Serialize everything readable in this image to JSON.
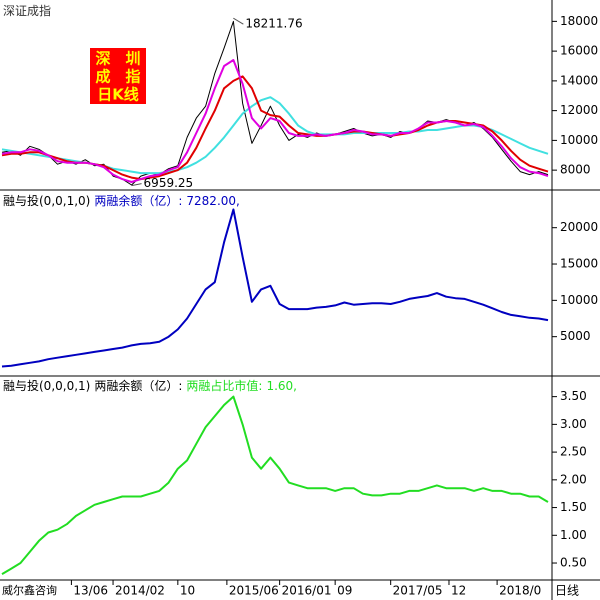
{
  "chart_data": [
    {
      "type": "line",
      "title": "深证成指",
      "badge": [
        "深　圳",
        "成　指",
        "日K线"
      ],
      "xlim": [
        0,
        59
      ],
      "ylim": [
        6800,
        19100
      ],
      "yticks": [
        8000,
        10000,
        12000,
        14000,
        16000,
        18000
      ],
      "annotations": [
        {
          "x": 25,
          "y": 18211.76
        },
        {
          "x": 14,
          "y": 6959.25
        }
      ],
      "series": [
        {
          "color": "#000000",
          "values": [
            9200,
            9300,
            9000,
            9600,
            9400,
            9000,
            8400,
            8600,
            8400,
            8700,
            8300,
            8400,
            7600,
            7400,
            7000,
            7600,
            7800,
            7700,
            8100,
            8300,
            10200,
            11500,
            12300,
            14500,
            16200,
            18000,
            12500,
            9800,
            11000,
            12300,
            11000,
            10000,
            10400,
            10200,
            10500,
            10300,
            10400,
            10600,
            10800,
            10500,
            10300,
            10400,
            10200,
            10600,
            10500,
            10800,
            11300,
            11200,
            11400,
            11200,
            11000,
            11200,
            10800,
            10200,
            9400,
            8600,
            7900,
            7700,
            7900,
            7700
          ]
        },
        {
          "color": "#40e0e0",
          "values": [
            9400,
            9300,
            9200,
            9100,
            9000,
            8900,
            8800,
            8700,
            8600,
            8500,
            8400,
            8300,
            8100,
            8000,
            7900,
            7800,
            7800,
            7800,
            7900,
            8000,
            8200,
            8500,
            8900,
            9500,
            10200,
            11000,
            11800,
            12300,
            12700,
            12900,
            12500,
            11800,
            11000,
            10600,
            10400,
            10400,
            10400,
            10400,
            10500,
            10500,
            10500,
            10500,
            10500,
            10500,
            10600,
            10600,
            10700,
            10700,
            10800,
            10900,
            11000,
            11000,
            10900,
            10700,
            10400,
            10100,
            9800,
            9500,
            9300,
            9100
          ]
        },
        {
          "color": "#e00000",
          "values": [
            9000,
            9100,
            9100,
            9200,
            9200,
            9000,
            8800,
            8600,
            8500,
            8500,
            8400,
            8300,
            8000,
            7700,
            7500,
            7400,
            7500,
            7600,
            7800,
            8000,
            8500,
            9500,
            10800,
            12000,
            13500,
            14000,
            14300,
            13500,
            12000,
            11700,
            11600,
            11000,
            10500,
            10400,
            10300,
            10300,
            10400,
            10500,
            10600,
            10600,
            10500,
            10400,
            10300,
            10400,
            10500,
            10700,
            11000,
            11200,
            11300,
            11300,
            11200,
            11100,
            11000,
            10600,
            10000,
            9300,
            8700,
            8300,
            8100,
            7900
          ]
        },
        {
          "color": "#e000e0",
          "values": [
            9100,
            9200,
            9200,
            9400,
            9300,
            9000,
            8600,
            8500,
            8500,
            8500,
            8400,
            8200,
            7700,
            7400,
            7200,
            7400,
            7600,
            7700,
            8000,
            8200,
            9200,
            10500,
            11800,
            13500,
            15000,
            15400,
            13800,
            11500,
            10800,
            11500,
            11300,
            10500,
            10300,
            10300,
            10400,
            10300,
            10400,
            10500,
            10700,
            10600,
            10400,
            10400,
            10300,
            10500,
            10500,
            10800,
            11200,
            11200,
            11300,
            11200,
            11000,
            11100,
            10900,
            10300,
            9600,
            8800,
            8200,
            7900,
            7800,
            7600
          ]
        }
      ]
    },
    {
      "type": "line",
      "indicator": "融与投(0,0,1,0)",
      "xlim": [
        0,
        59
      ],
      "ylim": [
        0,
        24500
      ],
      "yticks": [
        5000,
        10000,
        15000,
        20000
      ],
      "series": [
        {
          "name": "两融余额（亿）:",
          "color": "#0000c0",
          "values": [
            900,
            1000,
            1200,
            1400,
            1600,
            1900,
            2100,
            2300,
            2500,
            2700,
            2900,
            3100,
            3300,
            3500,
            3800,
            4000,
            4100,
            4300,
            5000,
            6000,
            7500,
            9500,
            11500,
            12500,
            18000,
            22500,
            16000,
            9800,
            11500,
            12000,
            9500,
            8800,
            8800,
            8800,
            9000,
            9100,
            9300,
            9700,
            9400,
            9500,
            9600,
            9600,
            9500,
            9800,
            10200,
            10400,
            10600,
            11000,
            10500,
            10300,
            10200,
            9800,
            9400,
            8900,
            8400,
            8000,
            7800,
            7600,
            7500,
            7282
          ],
          "value_labels": [
            null,
            null,
            null,
            null,
            null,
            null,
            null,
            null,
            null,
            null,
            null,
            null,
            null,
            null,
            null,
            null,
            null,
            null,
            null,
            null,
            null,
            null,
            null,
            null,
            null,
            null,
            null,
            null,
            null,
            null,
            null,
            null,
            null,
            null,
            null,
            null,
            null,
            null,
            null,
            null,
            null,
            null,
            null,
            null,
            null,
            null,
            null,
            null,
            null,
            null,
            null,
            null,
            null,
            null,
            null,
            null,
            null,
            null,
            null,
            "7282.00,"
          ]
        }
      ]
    },
    {
      "type": "line",
      "indicator": "融与投(0,0,0,1)",
      "note": "两融余额（亿）:",
      "xlim": [
        0,
        59
      ],
      "ylim": [
        0.23,
        3.8
      ],
      "yticks": [
        {
          "value": 0.5,
          "label": "0.50"
        },
        {
          "value": 1,
          "label": "1.00"
        },
        {
          "value": 1.5,
          "label": "1.50"
        },
        {
          "value": 2,
          "label": "2.00"
        },
        {
          "value": 2.5,
          "label": "2.50"
        },
        {
          "value": 3,
          "label": "3.00"
        },
        {
          "value": 3.5,
          "label": "3.50"
        }
      ],
      "source_label": "威尔鑫咨询",
      "period_label": "日线",
      "xticks": [
        {
          "value": 7.5,
          "label": "13/06"
        },
        {
          "value": 12,
          "label": "2014/02"
        },
        {
          "value": 19,
          "label": "10"
        },
        {
          "value": 24.3,
          "label": "2015/06"
        },
        {
          "value": 30,
          "label": "2016/01"
        },
        {
          "value": 36,
          "label": "09"
        },
        {
          "value": 42,
          "label": "2017/05"
        },
        {
          "value": 48.3,
          "label": "12"
        },
        {
          "value": 53.5,
          "label": "2018/0"
        }
      ],
      "series": [
        {
          "name": "两融占比市值:",
          "color": "#22dd22",
          "values": [
            0.3,
            0.4,
            0.5,
            0.7,
            0.9,
            1.05,
            1.1,
            1.2,
            1.35,
            1.45,
            1.55,
            1.6,
            1.65,
            1.7,
            1.7,
            1.7,
            1.75,
            1.8,
            1.95,
            2.2,
            2.35,
            2.65,
            2.95,
            3.15,
            3.35,
            3.5,
            3.0,
            2.4,
            2.2,
            2.4,
            2.2,
            1.95,
            1.9,
            1.85,
            1.85,
            1.85,
            1.8,
            1.85,
            1.85,
            1.75,
            1.72,
            1.72,
            1.75,
            1.75,
            1.8,
            1.8,
            1.85,
            1.9,
            1.85,
            1.85,
            1.85,
            1.8,
            1.85,
            1.8,
            1.8,
            1.75,
            1.75,
            1.7,
            1.7,
            1.6
          ],
          "value_labels": [
            null,
            null,
            null,
            null,
            null,
            null,
            null,
            null,
            null,
            null,
            null,
            null,
            null,
            null,
            null,
            null,
            null,
            null,
            null,
            null,
            null,
            null,
            null,
            null,
            null,
            null,
            null,
            null,
            null,
            null,
            null,
            null,
            null,
            null,
            null,
            null,
            null,
            null,
            null,
            null,
            null,
            null,
            null,
            null,
            null,
            null,
            null,
            null,
            null,
            null,
            null,
            null,
            null,
            null,
            null,
            null,
            null,
            null,
            null,
            "1.60,"
          ]
        }
      ]
    }
  ]
}
